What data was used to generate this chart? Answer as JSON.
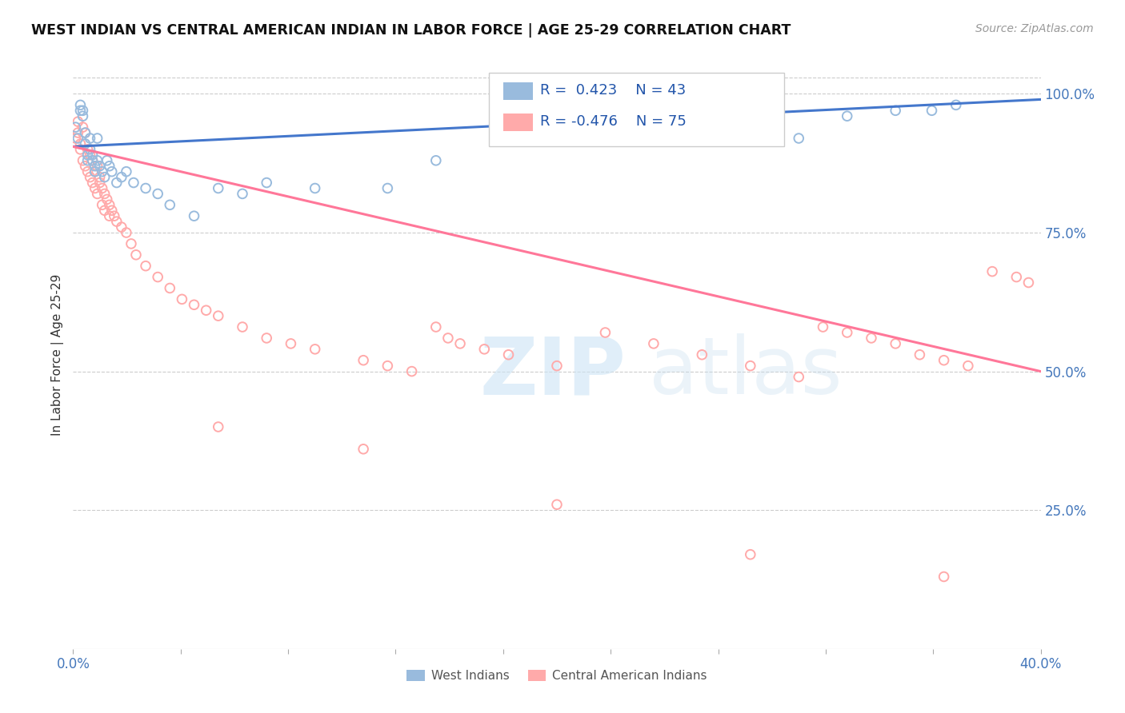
{
  "title": "WEST INDIAN VS CENTRAL AMERICAN INDIAN IN LABOR FORCE | AGE 25-29 CORRELATION CHART",
  "source": "Source: ZipAtlas.com",
  "ylabel": "In Labor Force | Age 25-29",
  "xlim": [
    0.0,
    0.4
  ],
  "ylim": [
    0.0,
    1.06
  ],
  "ytick_values": [
    0.0,
    0.25,
    0.5,
    0.75,
    1.0
  ],
  "ytick_labels": [
    "",
    "25.0%",
    "50.0%",
    "75.0%",
    "100.0%"
  ],
  "xtick_values": [
    0.0,
    0.04444,
    0.08889,
    0.13333,
    0.17778,
    0.22222,
    0.26667,
    0.31111,
    0.35556,
    0.4
  ],
  "blue_color": "#99BBDD",
  "pink_color": "#FFAAAA",
  "blue_line_color": "#4477CC",
  "pink_line_color": "#FF7799",
  "blue_scatter_x": [
    0.001,
    0.002,
    0.003,
    0.003,
    0.004,
    0.004,
    0.005,
    0.005,
    0.006,
    0.006,
    0.007,
    0.007,
    0.008,
    0.008,
    0.009,
    0.009,
    0.01,
    0.01,
    0.011,
    0.012,
    0.013,
    0.014,
    0.015,
    0.016,
    0.018,
    0.02,
    0.022,
    0.025,
    0.03,
    0.035,
    0.04,
    0.05,
    0.06,
    0.07,
    0.08,
    0.1,
    0.13,
    0.15,
    0.3,
    0.32,
    0.34,
    0.355,
    0.365
  ],
  "blue_scatter_y": [
    0.94,
    0.92,
    0.97,
    0.98,
    0.97,
    0.96,
    0.93,
    0.91,
    0.89,
    0.88,
    0.92,
    0.9,
    0.89,
    0.88,
    0.87,
    0.86,
    0.92,
    0.88,
    0.87,
    0.86,
    0.85,
    0.88,
    0.87,
    0.86,
    0.84,
    0.85,
    0.86,
    0.84,
    0.83,
    0.82,
    0.8,
    0.78,
    0.83,
    0.82,
    0.84,
    0.83,
    0.83,
    0.88,
    0.92,
    0.96,
    0.97,
    0.97,
    0.98
  ],
  "pink_scatter_x": [
    0.001,
    0.002,
    0.002,
    0.003,
    0.003,
    0.004,
    0.004,
    0.005,
    0.005,
    0.006,
    0.006,
    0.007,
    0.007,
    0.008,
    0.008,
    0.009,
    0.009,
    0.01,
    0.01,
    0.011,
    0.011,
    0.012,
    0.012,
    0.013,
    0.013,
    0.014,
    0.015,
    0.015,
    0.016,
    0.017,
    0.018,
    0.02,
    0.022,
    0.024,
    0.026,
    0.03,
    0.035,
    0.04,
    0.045,
    0.05,
    0.055,
    0.06,
    0.07,
    0.08,
    0.09,
    0.1,
    0.12,
    0.13,
    0.14,
    0.15,
    0.155,
    0.16,
    0.17,
    0.18,
    0.2,
    0.22,
    0.24,
    0.26,
    0.28,
    0.3,
    0.31,
    0.32,
    0.33,
    0.34,
    0.35,
    0.36,
    0.37,
    0.38,
    0.39,
    0.395,
    0.06,
    0.12,
    0.2,
    0.28,
    0.36
  ],
  "pink_scatter_y": [
    0.92,
    0.93,
    0.95,
    0.91,
    0.9,
    0.94,
    0.88,
    0.93,
    0.87,
    0.9,
    0.86,
    0.89,
    0.85,
    0.88,
    0.84,
    0.86,
    0.83,
    0.87,
    0.82,
    0.85,
    0.84,
    0.83,
    0.8,
    0.82,
    0.79,
    0.81,
    0.78,
    0.8,
    0.79,
    0.78,
    0.77,
    0.76,
    0.75,
    0.73,
    0.71,
    0.69,
    0.67,
    0.65,
    0.63,
    0.62,
    0.61,
    0.6,
    0.58,
    0.56,
    0.55,
    0.54,
    0.52,
    0.51,
    0.5,
    0.58,
    0.56,
    0.55,
    0.54,
    0.53,
    0.51,
    0.57,
    0.55,
    0.53,
    0.51,
    0.49,
    0.58,
    0.57,
    0.56,
    0.55,
    0.53,
    0.52,
    0.51,
    0.68,
    0.67,
    0.66,
    0.4,
    0.36,
    0.26,
    0.17,
    0.13
  ]
}
